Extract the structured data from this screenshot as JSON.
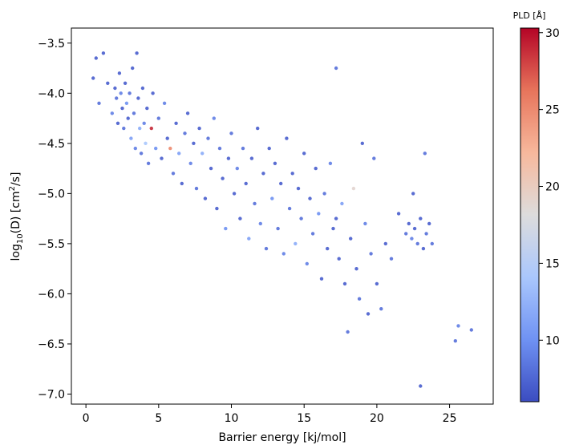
{
  "chart_data": {
    "type": "scatter",
    "title": "",
    "xlabel": "Barrier energy [kj/mol]",
    "ylabel_main": "log",
    "ylabel_sub": "10",
    "ylabel_rest": "(D) [cm",
    "ylabel_sup": "2",
    "ylabel_end": "/s]",
    "xlim": [
      -1.0,
      28.0
    ],
    "ylim": [
      -7.1,
      -3.35
    ],
    "xticks": [
      0,
      5,
      10,
      15,
      20,
      25
    ],
    "xtick_labels": [
      "0",
      "5",
      "10",
      "15",
      "20",
      "25"
    ],
    "yticks": [
      -7.0,
      -6.5,
      -6.0,
      -5.5,
      -5.0,
      -4.5,
      -4.0,
      -3.5
    ],
    "ytick_labels": [
      "−7.0",
      "−6.5",
      "−6.0",
      "−5.5",
      "−5.0",
      "−4.5",
      "−4.0",
      "−3.5"
    ],
    "grid": false,
    "colorbar": {
      "label": "PLD [Å]",
      "min": 6.0,
      "max": 30.3,
      "ticks": [
        10,
        15,
        20,
        25,
        30
      ],
      "tick_labels": [
        "10",
        "15",
        "20",
        "25",
        "30"
      ],
      "colormap": "coolwarm"
    },
    "colormap_stops": [
      "#3b4cc0",
      "#6f92f3",
      "#aac7fd",
      "#dddcdc",
      "#f7b89c",
      "#e7745b",
      "#b40426"
    ],
    "points": [
      [
        0.5,
        -3.85,
        7
      ],
      [
        0.7,
        -3.65,
        7
      ],
      [
        0.9,
        -4.1,
        8
      ],
      [
        1.2,
        -3.6,
        7
      ],
      [
        1.5,
        -3.9,
        7
      ],
      [
        1.8,
        -4.2,
        9
      ],
      [
        2.0,
        -3.95,
        7
      ],
      [
        2.1,
        -4.05,
        8
      ],
      [
        2.2,
        -4.3,
        7
      ],
      [
        2.3,
        -3.8,
        7
      ],
      [
        2.4,
        -4.0,
        9
      ],
      [
        2.5,
        -4.15,
        7
      ],
      [
        2.6,
        -4.35,
        8
      ],
      [
        2.7,
        -3.9,
        7
      ],
      [
        2.8,
        -4.1,
        10
      ],
      [
        2.9,
        -4.25,
        7
      ],
      [
        3.0,
        -4.0,
        8
      ],
      [
        3.1,
        -4.45,
        11
      ],
      [
        3.2,
        -3.75,
        7
      ],
      [
        3.3,
        -4.2,
        8
      ],
      [
        3.4,
        -4.55,
        9
      ],
      [
        3.5,
        -3.6,
        7
      ],
      [
        3.6,
        -4.05,
        7
      ],
      [
        3.7,
        -4.35,
        12
      ],
      [
        3.8,
        -4.6,
        8
      ],
      [
        3.9,
        -3.95,
        7
      ],
      [
        4.0,
        -4.3,
        9
      ],
      [
        4.1,
        -4.5,
        14
      ],
      [
        4.2,
        -4.15,
        7
      ],
      [
        4.3,
        -4.7,
        8
      ],
      [
        4.5,
        -4.35,
        29
      ],
      [
        4.6,
        -4.0,
        7
      ],
      [
        4.8,
        -4.55,
        10
      ],
      [
        5.0,
        -4.25,
        8
      ],
      [
        5.2,
        -4.65,
        7
      ],
      [
        5.4,
        -4.1,
        9
      ],
      [
        5.6,
        -4.45,
        7
      ],
      [
        5.8,
        -4.55,
        25
      ],
      [
        6.0,
        -4.8,
        8
      ],
      [
        6.2,
        -4.3,
        7
      ],
      [
        6.4,
        -4.6,
        11
      ],
      [
        6.6,
        -4.9,
        7
      ],
      [
        6.8,
        -4.4,
        8
      ],
      [
        7.0,
        -4.2,
        7
      ],
      [
        7.2,
        -4.7,
        9
      ],
      [
        7.4,
        -4.5,
        7
      ],
      [
        7.6,
        -4.95,
        8
      ],
      [
        7.8,
        -4.35,
        7
      ],
      [
        8.0,
        -4.6,
        12
      ],
      [
        8.2,
        -5.05,
        7
      ],
      [
        8.4,
        -4.45,
        8
      ],
      [
        8.6,
        -4.75,
        7
      ],
      [
        8.8,
        -4.25,
        9
      ],
      [
        9.0,
        -5.15,
        7
      ],
      [
        9.2,
        -4.55,
        8
      ],
      [
        9.4,
        -4.85,
        7
      ],
      [
        9.6,
        -5.35,
        10
      ],
      [
        9.8,
        -4.65,
        7
      ],
      [
        10.0,
        -4.4,
        8
      ],
      [
        10.2,
        -5.0,
        7
      ],
      [
        10.4,
        -4.75,
        9
      ],
      [
        10.6,
        -5.25,
        7
      ],
      [
        10.8,
        -4.55,
        8
      ],
      [
        11.0,
        -4.9,
        7
      ],
      [
        11.2,
        -5.45,
        11
      ],
      [
        11.4,
        -4.65,
        7
      ],
      [
        11.6,
        -5.1,
        8
      ],
      [
        11.8,
        -4.35,
        7
      ],
      [
        12.0,
        -5.3,
        9
      ],
      [
        12.2,
        -4.8,
        7
      ],
      [
        12.4,
        -5.55,
        8
      ],
      [
        12.6,
        -4.55,
        7
      ],
      [
        12.8,
        -5.05,
        10
      ],
      [
        13.0,
        -4.7,
        7
      ],
      [
        13.2,
        -5.35,
        8
      ],
      [
        13.4,
        -4.9,
        7
      ],
      [
        13.6,
        -5.6,
        9
      ],
      [
        13.8,
        -4.45,
        7
      ],
      [
        14.0,
        -5.15,
        8
      ],
      [
        14.2,
        -4.8,
        7
      ],
      [
        14.4,
        -5.5,
        12
      ],
      [
        14.6,
        -4.95,
        7
      ],
      [
        14.8,
        -5.25,
        8
      ],
      [
        15.0,
        -4.6,
        7
      ],
      [
        15.2,
        -5.7,
        9
      ],
      [
        15.4,
        -5.05,
        7
      ],
      [
        15.6,
        -5.4,
        8
      ],
      [
        15.8,
        -4.75,
        7
      ],
      [
        16.0,
        -5.2,
        10
      ],
      [
        16.2,
        -5.85,
        7
      ],
      [
        16.4,
        -5.0,
        8
      ],
      [
        16.6,
        -5.55,
        7
      ],
      [
        16.8,
        -4.7,
        9
      ],
      [
        17.0,
        -5.35,
        7
      ],
      [
        17.2,
        -3.75,
        8
      ],
      [
        17.4,
        -5.65,
        7
      ],
      [
        17.6,
        -5.1,
        11
      ],
      [
        17.8,
        -5.9,
        7
      ],
      [
        18.0,
        -6.38,
        8
      ],
      [
        18.2,
        -5.45,
        7
      ],
      [
        18.4,
        -4.95,
        19
      ],
      [
        18.6,
        -5.75,
        7
      ],
      [
        18.8,
        -6.05,
        8
      ],
      [
        19.0,
        -4.5,
        7
      ],
      [
        19.2,
        -5.3,
        9
      ],
      [
        19.4,
        -6.2,
        7
      ],
      [
        19.6,
        -5.6,
        8
      ],
      [
        20.0,
        -5.9,
        7
      ],
      [
        20.3,
        -6.15,
        8
      ],
      [
        20.6,
        -5.5,
        7
      ],
      [
        21.0,
        -5.65,
        8
      ],
      [
        21.5,
        -5.2,
        7
      ],
      [
        22.0,
        -5.4,
        8
      ],
      [
        22.2,
        -5.3,
        7
      ],
      [
        22.4,
        -5.45,
        9
      ],
      [
        22.6,
        -5.35,
        7
      ],
      [
        22.8,
        -5.5,
        8
      ],
      [
        23.0,
        -5.25,
        7
      ],
      [
        23.2,
        -5.55,
        7
      ],
      [
        23.4,
        -5.4,
        8
      ],
      [
        23.6,
        -5.3,
        7
      ],
      [
        23.8,
        -5.5,
        8
      ],
      [
        23.0,
        -6.92,
        7
      ],
      [
        23.3,
        -4.6,
        8
      ],
      [
        22.5,
        -5.0,
        7
      ],
      [
        25.4,
        -6.47,
        8
      ],
      [
        25.6,
        -6.32,
        9
      ],
      [
        26.5,
        -6.36,
        8
      ],
      [
        17.2,
        -5.25,
        7
      ],
      [
        19.8,
        -4.65,
        8
      ]
    ]
  }
}
